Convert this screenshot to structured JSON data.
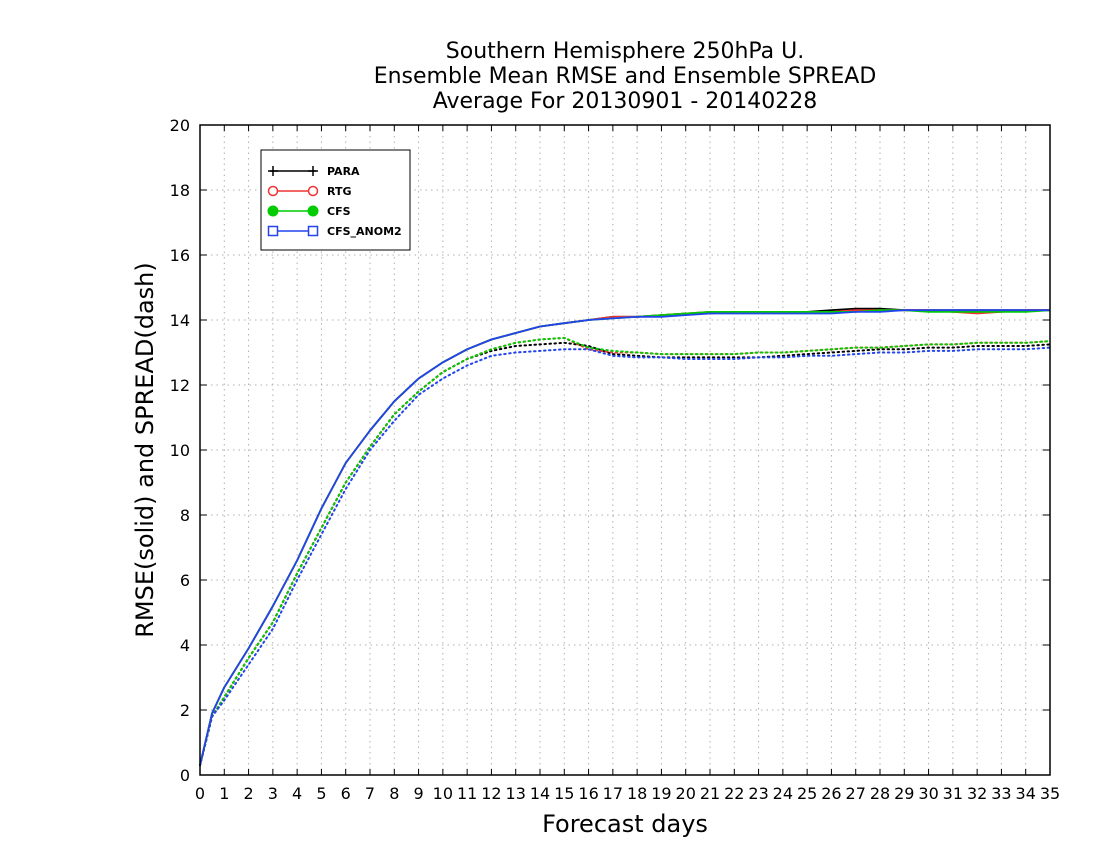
{
  "chart_data": {
    "type": "line",
    "title_lines": [
      "Southern Hemisphere 250hPa U.",
      "Ensemble Mean RMSE and Ensemble SPREAD",
      "Average For 20130901 - 20140228"
    ],
    "xlabel": "Forecast days",
    "ylabel": "RMSE(solid) and SPREAD(dash)",
    "xlim": [
      0,
      35
    ],
    "ylim": [
      0,
      20
    ],
    "x_ticks": [
      0,
      1,
      2,
      3,
      4,
      5,
      6,
      7,
      8,
      9,
      10,
      11,
      12,
      13,
      14,
      15,
      16,
      17,
      18,
      19,
      20,
      21,
      22,
      23,
      24,
      25,
      26,
      27,
      28,
      29,
      30,
      31,
      32,
      33,
      34,
      35
    ],
    "y_ticks": [
      0,
      2,
      4,
      6,
      8,
      10,
      12,
      14,
      16,
      18,
      20
    ],
    "grid": true,
    "legend_position": "top-left",
    "legend": [
      {
        "name": "PARA",
        "color": "#000000",
        "marker": "plus"
      },
      {
        "name": "RTG",
        "color": "#ee3333",
        "marker": "open-circle"
      },
      {
        "name": "CFS",
        "color": "#00cc00",
        "marker": "filled-circle"
      },
      {
        "name": "CFS_ANOM2",
        "color": "#2244ee",
        "marker": "open-square"
      }
    ],
    "x": [
      0,
      0.5,
      1,
      2,
      3,
      4,
      5,
      6,
      7,
      8,
      9,
      10,
      11,
      12,
      13,
      14,
      15,
      16,
      17,
      18,
      19,
      20,
      21,
      22,
      23,
      24,
      25,
      26,
      27,
      28,
      29,
      30,
      31,
      32,
      33,
      34,
      35
    ],
    "series": [
      {
        "name": "PARA",
        "kind": "rmse",
        "color": "#000000",
        "values": [
          0.3,
          1.9,
          2.7,
          3.9,
          5.2,
          6.6,
          8.2,
          9.6,
          10.6,
          11.5,
          12.2,
          12.7,
          13.1,
          13.4,
          13.6,
          13.8,
          13.9,
          14.0,
          14.1,
          14.1,
          14.15,
          14.2,
          14.2,
          14.25,
          14.25,
          14.25,
          14.25,
          14.3,
          14.35,
          14.35,
          14.3,
          14.3,
          14.3,
          14.3,
          14.3,
          14.3,
          14.3
        ]
      },
      {
        "name": "RTG",
        "kind": "rmse",
        "color": "#ee3333",
        "values": [
          0.3,
          1.9,
          2.7,
          3.9,
          5.2,
          6.6,
          8.2,
          9.6,
          10.6,
          11.5,
          12.2,
          12.7,
          13.1,
          13.4,
          13.6,
          13.8,
          13.9,
          14.0,
          14.1,
          14.1,
          14.15,
          14.2,
          14.25,
          14.25,
          14.25,
          14.25,
          14.25,
          14.25,
          14.3,
          14.3,
          14.3,
          14.3,
          14.25,
          14.2,
          14.25,
          14.3,
          14.3
        ]
      },
      {
        "name": "CFS",
        "kind": "rmse",
        "color": "#00cc00",
        "values": [
          0.3,
          1.9,
          2.7,
          3.9,
          5.2,
          6.6,
          8.2,
          9.6,
          10.6,
          11.5,
          12.2,
          12.7,
          13.1,
          13.4,
          13.6,
          13.8,
          13.9,
          14.0,
          14.05,
          14.1,
          14.15,
          14.2,
          14.25,
          14.25,
          14.25,
          14.25,
          14.25,
          14.25,
          14.25,
          14.3,
          14.3,
          14.25,
          14.25,
          14.25,
          14.25,
          14.25,
          14.3
        ]
      },
      {
        "name": "CFS_ANOM2",
        "kind": "rmse",
        "color": "#2244ee",
        "values": [
          0.3,
          1.9,
          2.7,
          3.9,
          5.2,
          6.6,
          8.2,
          9.6,
          10.6,
          11.5,
          12.2,
          12.7,
          13.1,
          13.4,
          13.6,
          13.8,
          13.9,
          14.0,
          14.05,
          14.1,
          14.1,
          14.15,
          14.2,
          14.2,
          14.2,
          14.2,
          14.2,
          14.2,
          14.25,
          14.25,
          14.3,
          14.3,
          14.3,
          14.3,
          14.3,
          14.3,
          14.3
        ]
      },
      {
        "name": "PARA",
        "kind": "spread",
        "color": "#000000",
        "values": [
          0.3,
          1.8,
          2.4,
          3.6,
          4.7,
          6.2,
          7.6,
          9.0,
          10.1,
          11.1,
          11.8,
          12.4,
          12.8,
          13.05,
          13.2,
          13.25,
          13.3,
          13.2,
          12.95,
          12.9,
          12.85,
          12.85,
          12.85,
          12.85,
          12.85,
          12.9,
          12.95,
          13.0,
          13.05,
          13.1,
          13.1,
          13.15,
          13.15,
          13.2,
          13.2,
          13.2,
          13.25
        ]
      },
      {
        "name": "RTG",
        "kind": "spread",
        "color": "#ee3333",
        "values": [
          0.3,
          1.8,
          2.4,
          3.6,
          4.7,
          6.2,
          7.6,
          9.0,
          10.1,
          11.1,
          11.8,
          12.4,
          12.8,
          13.1,
          13.3,
          13.4,
          13.45,
          13.1,
          13.0,
          13.0,
          12.95,
          12.95,
          12.95,
          12.95,
          13.0,
          13.0,
          13.05,
          13.1,
          13.15,
          13.15,
          13.2,
          13.25,
          13.25,
          13.3,
          13.3,
          13.3,
          13.35
        ]
      },
      {
        "name": "CFS",
        "kind": "spread",
        "color": "#00cc00",
        "values": [
          0.3,
          1.8,
          2.4,
          3.6,
          4.7,
          6.2,
          7.6,
          9.0,
          10.1,
          11.1,
          11.8,
          12.4,
          12.8,
          13.1,
          13.3,
          13.4,
          13.45,
          13.15,
          13.05,
          13.0,
          12.95,
          12.95,
          12.95,
          12.95,
          13.0,
          13.0,
          13.05,
          13.1,
          13.15,
          13.15,
          13.2,
          13.25,
          13.25,
          13.3,
          13.3,
          13.3,
          13.35
        ]
      },
      {
        "name": "CFS_ANOM2",
        "kind": "spread",
        "color": "#2244ee",
        "values": [
          0.3,
          1.8,
          2.3,
          3.4,
          4.5,
          6.0,
          7.4,
          8.8,
          10.0,
          10.9,
          11.7,
          12.2,
          12.6,
          12.9,
          13.0,
          13.05,
          13.1,
          13.1,
          12.9,
          12.85,
          12.85,
          12.8,
          12.8,
          12.8,
          12.85,
          12.85,
          12.9,
          12.9,
          12.95,
          13.0,
          13.0,
          13.05,
          13.05,
          13.1,
          13.1,
          13.1,
          13.15
        ]
      }
    ]
  }
}
